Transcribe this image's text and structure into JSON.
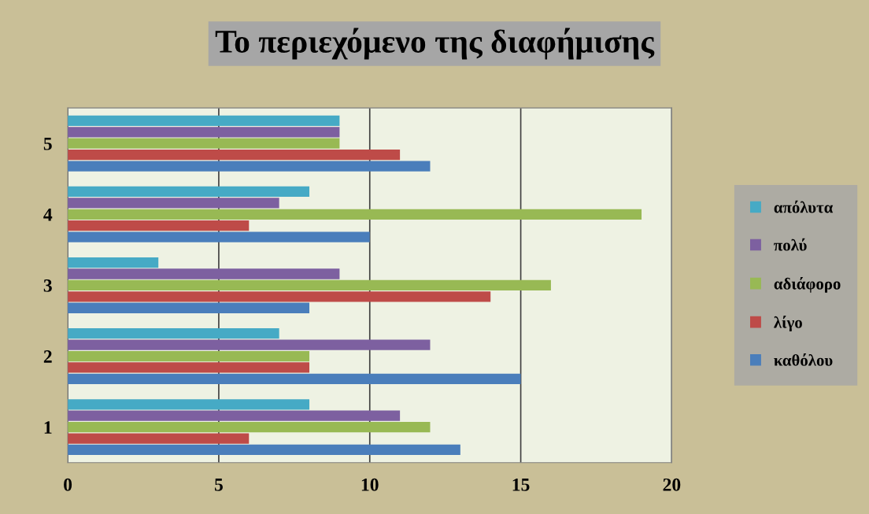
{
  "chart_data": {
    "type": "bar",
    "orientation": "horizontal",
    "title": "Το περιεχόμενο της διαφήμισης",
    "categories": [
      "5",
      "4",
      "3",
      "2",
      "1"
    ],
    "series": [
      {
        "name": "καθόλου",
        "color": "#4a7ebb",
        "values": [
          12,
          10,
          8,
          15,
          13
        ]
      },
      {
        "name": "λίγο",
        "color": "#be4b48",
        "values": [
          11,
          6,
          14,
          8,
          6
        ]
      },
      {
        "name": "αδιάφορο",
        "color": "#98b954",
        "values": [
          9,
          19,
          16,
          8,
          12
        ]
      },
      {
        "name": "πολύ",
        "color": "#7d60a0",
        "values": [
          9,
          7,
          9,
          12,
          11
        ]
      },
      {
        "name": "απόλυτα",
        "color": "#46aac5",
        "values": [
          9,
          8,
          3,
          7,
          8
        ]
      }
    ],
    "xlim": [
      0,
      20
    ],
    "xticks": [
      0,
      5,
      10,
      15,
      20
    ],
    "grid": "x",
    "legend": "right"
  }
}
